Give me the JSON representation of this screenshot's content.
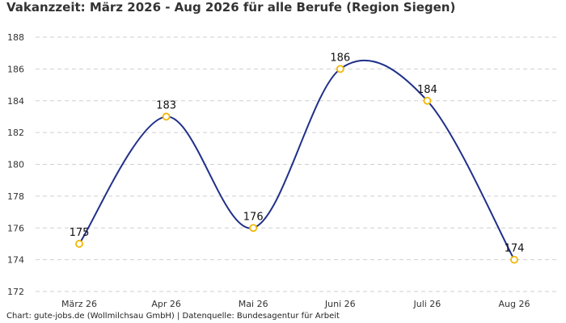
{
  "chart_data": {
    "type": "line",
    "title": "Vakanzzeit: März 2026 - Aug 2026 für alle Berufe (Region Siegen)",
    "categories": [
      "März 26",
      "Apr 26",
      "Mai 26",
      "Juni 26",
      "Juli 26",
      "Aug 26"
    ],
    "series": [
      {
        "values": [
          175,
          183,
          176,
          186,
          184,
          174
        ]
      }
    ],
    "ylim": [
      172,
      188
    ],
    "yticks": [
      172,
      174,
      176,
      178,
      180,
      182,
      184,
      186,
      188
    ],
    "grid": true,
    "smooth": true,
    "line_color": "#1f2f8a",
    "marker_color": "#f2b705",
    "source": "Chart: gute-jobs.de (Wollmilchsau GmbH) | Datenquelle: Bundesagentur für Arbeit"
  }
}
